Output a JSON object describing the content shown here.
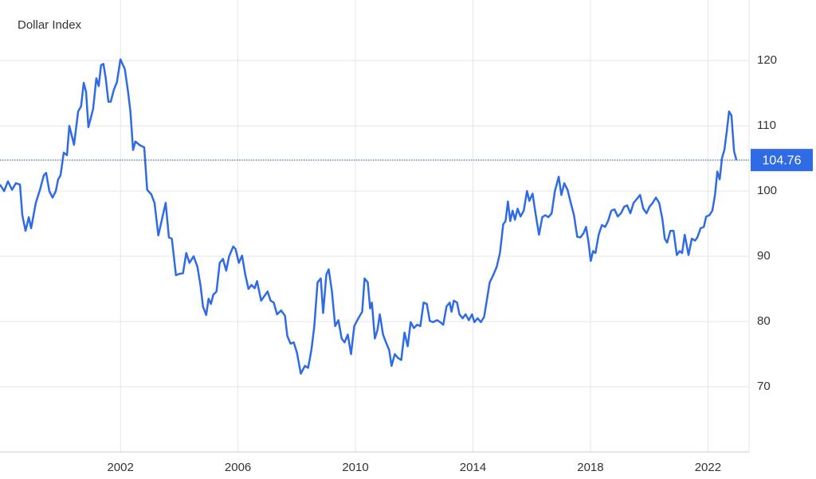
{
  "chart_data": {
    "type": "line",
    "title": "Dollar Index",
    "color": "#2f6be5",
    "grid": true,
    "xlim": [
      1997.9,
      2023.4
    ],
    "ylim": [
      60,
      129.3
    ],
    "xticks": [
      2002,
      2006,
      2010,
      2014,
      2018,
      2022
    ],
    "yticks": [
      70,
      80,
      90,
      100,
      110,
      120
    ],
    "last_value": 104.76,
    "x": [
      1997.9,
      1998.04,
      1998.17,
      1998.31,
      1998.44,
      1998.58,
      1998.66,
      1998.77,
      1998.88,
      1998.96,
      1999.12,
      1999.26,
      1999.39,
      1999.47,
      1999.58,
      1999.69,
      1999.8,
      1999.88,
      1999.96,
      2000.07,
      2000.18,
      2000.26,
      2000.42,
      2000.56,
      2000.66,
      2000.75,
      2000.83,
      2000.91,
      2001.07,
      2001.18,
      2001.26,
      2001.34,
      2001.42,
      2001.5,
      2001.59,
      2001.67,
      2001.78,
      2001.88,
      2002.0,
      2002.15,
      2002.26,
      2002.34,
      2002.43,
      2002.51,
      2002.64,
      2002.81,
      2002.91,
      2003.05,
      2003.16,
      2003.29,
      2003.4,
      2003.54,
      2003.65,
      2003.75,
      2003.89,
      2004.0,
      2004.13,
      2004.24,
      2004.35,
      2004.49,
      2004.62,
      2004.73,
      2004.81,
      2004.92,
      2005.0,
      2005.08,
      2005.16,
      2005.27,
      2005.38,
      2005.49,
      2005.6,
      2005.7,
      2005.84,
      2005.92,
      2006.03,
      2006.14,
      2006.25,
      2006.36,
      2006.46,
      2006.57,
      2006.65,
      2006.79,
      2006.9,
      2007.01,
      2007.11,
      2007.22,
      2007.33,
      2007.47,
      2007.6,
      2007.68,
      2007.79,
      2007.9,
      2008.01,
      2008.14,
      2008.28,
      2008.39,
      2008.5,
      2008.6,
      2008.71,
      2008.82,
      2008.9,
      2009.01,
      2009.09,
      2009.2,
      2009.31,
      2009.42,
      2009.53,
      2009.63,
      2009.74,
      2009.85,
      2009.96,
      2010.1,
      2010.23,
      2010.31,
      2010.42,
      2010.5,
      2010.56,
      2010.66,
      2010.75,
      2010.83,
      2010.94,
      2011.04,
      2011.15,
      2011.23,
      2011.34,
      2011.45,
      2011.56,
      2011.67,
      2011.78,
      2011.88,
      2011.99,
      2012.1,
      2012.21,
      2012.32,
      2012.43,
      2012.53,
      2012.64,
      2012.78,
      2012.89,
      2012.99,
      2013.1,
      2013.21,
      2013.27,
      2013.35,
      2013.46,
      2013.54,
      2013.65,
      2013.75,
      2013.86,
      2013.97,
      2014.05,
      2014.16,
      2014.27,
      2014.38,
      2014.46,
      2014.57,
      2014.7,
      2014.81,
      2014.92,
      2015.03,
      2015.11,
      2015.19,
      2015.27,
      2015.35,
      2015.43,
      2015.52,
      2015.62,
      2015.73,
      2015.84,
      2015.92,
      2016.03,
      2016.14,
      2016.25,
      2016.36,
      2016.46,
      2016.57,
      2016.68,
      2016.79,
      2016.92,
      2017.01,
      2017.11,
      2017.22,
      2017.33,
      2017.44,
      2017.55,
      2017.66,
      2017.76,
      2017.85,
      2017.93,
      2018.01,
      2018.09,
      2018.17,
      2018.28,
      2018.39,
      2018.5,
      2018.6,
      2018.71,
      2018.82,
      2018.93,
      2019.04,
      2019.15,
      2019.25,
      2019.36,
      2019.47,
      2019.58,
      2019.69,
      2019.8,
      2019.91,
      2020.01,
      2020.12,
      2020.23,
      2020.34,
      2020.45,
      2020.53,
      2020.61,
      2020.72,
      2020.83,
      2020.94,
      2021.04,
      2021.12,
      2021.21,
      2021.34,
      2021.45,
      2021.56,
      2021.64,
      2021.75,
      2021.86,
      2021.94,
      2022.05,
      2022.15,
      2022.24,
      2022.32,
      2022.4,
      2022.48,
      2022.56,
      2022.64,
      2022.72,
      2022.8,
      2022.89,
      2022.97
    ],
    "values": [
      101,
      100,
      101.5,
      100.2,
      101.2,
      101,
      96.3,
      93.9,
      96,
      94.3,
      98.2,
      100.2,
      102.4,
      102.8,
      100,
      99,
      100,
      101.8,
      102.4,
      105.9,
      105.5,
      110,
      107.1,
      112.2,
      113,
      116.6,
      115.2,
      109.8,
      112.6,
      117.3,
      116.1,
      119.3,
      119.5,
      117.3,
      113.7,
      113.7,
      115.6,
      116.7,
      120.2,
      118.7,
      115.2,
      112.2,
      106.3,
      107.6,
      107.1,
      106.7,
      100.2,
      99.5,
      98.2,
      93.2,
      95.4,
      98.2,
      92.9,
      92.7,
      87.1,
      87.3,
      87.4,
      90.5,
      89,
      90,
      88.4,
      85.4,
      82.3,
      81,
      83.5,
      82.7,
      84.1,
      84.6,
      89,
      89.6,
      87.8,
      90,
      91.5,
      91.1,
      89,
      90.1,
      87.2,
      85,
      85.6,
      85.1,
      86.2,
      83.2,
      83.9,
      84.6,
      83.2,
      82.9,
      81.1,
      81.7,
      80.9,
      77.8,
      76.6,
      76.8,
      75.2,
      72,
      73.2,
      72.9,
      75.6,
      79.3,
      86,
      86.6,
      81.3,
      87.2,
      88,
      84.6,
      79.3,
      80.2,
      77.4,
      76.8,
      78,
      75,
      79.3,
      80.5,
      81.5,
      86.6,
      86,
      82,
      82.9,
      77.4,
      78.7,
      81.1,
      78,
      76.8,
      75.6,
      73.2,
      75,
      74.4,
      74.1,
      78.3,
      76.2,
      79.9,
      79,
      79.5,
      79.3,
      82.9,
      82.7,
      80.1,
      79.9,
      80.2,
      79.9,
      79.5,
      82.3,
      82.9,
      81.5,
      83.2,
      82.9,
      81.1,
      80.5,
      81.1,
      80.2,
      81.1,
      79.9,
      80.5,
      79.9,
      80.7,
      82.9,
      86,
      87.2,
      88.4,
      90.5,
      94.9,
      95.4,
      98.4,
      95.4,
      97,
      95.6,
      97.3,
      96.1,
      97,
      100,
      98.5,
      99.6,
      96.3,
      93.3,
      96,
      96.3,
      96,
      96.6,
      100,
      102.2,
      99.4,
      101.2,
      100.2,
      98.2,
      96.3,
      93,
      92.9,
      93.5,
      94.5,
      92.3,
      89.3,
      90.8,
      90.5,
      93.3,
      94.8,
      94.5,
      95.4,
      97,
      97.2,
      96.1,
      96.6,
      97.6,
      97.8,
      96.6,
      98.2,
      98.8,
      99.4,
      97.3,
      96.6,
      97.6,
      98.2,
      99,
      98.2,
      95.7,
      92.7,
      92.1,
      93.9,
      93.9,
      90.2,
      90.8,
      90.5,
      93.3,
      90.2,
      92.7,
      92.4,
      92.9,
      94.3,
      94.5,
      96.1,
      96.3,
      97,
      99.4,
      103,
      101.8,
      105.1,
      106.3,
      109.1,
      112.2,
      111.6,
      106.1,
      104.76
    ]
  }
}
